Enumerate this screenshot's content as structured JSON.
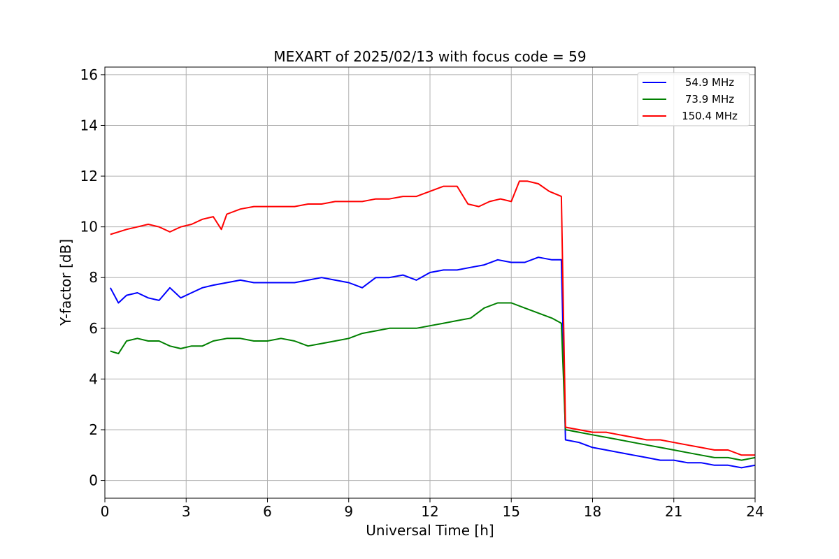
{
  "chart_data": {
    "type": "line",
    "title": "MEXART of 2025/02/13 with focus code = 59",
    "xlabel": "Universal Time [h]",
    "ylabel": "Y-factor [dB]",
    "xlim": [
      0,
      24
    ],
    "ylim": [
      -0.7,
      16.3
    ],
    "xticks": [
      0,
      3,
      6,
      9,
      12,
      15,
      18,
      21,
      24
    ],
    "yticks": [
      0,
      2,
      4,
      6,
      8,
      10,
      12,
      14,
      16
    ],
    "grid": true,
    "legend_position": "upper right",
    "series": [
      {
        "name": "54.9 MHz",
        "color": "#0000ff",
        "x": [
          0.2,
          0.5,
          0.8,
          1.2,
          1.6,
          2.0,
          2.4,
          2.8,
          3.2,
          3.6,
          4.0,
          4.5,
          5.0,
          5.5,
          6.0,
          6.5,
          7.0,
          7.5,
          8.0,
          8.5,
          9.0,
          9.5,
          10.0,
          10.5,
          11.0,
          11.5,
          12.0,
          12.5,
          13.0,
          13.5,
          14.0,
          14.5,
          15.0,
          15.5,
          16.0,
          16.5,
          16.85,
          17.0,
          17.5,
          18.0,
          18.5,
          19.0,
          19.5,
          20.0,
          20.5,
          21.0,
          21.5,
          22.0,
          22.5,
          23.0,
          23.5,
          24.0
        ],
        "y": [
          7.6,
          7.0,
          7.3,
          7.4,
          7.2,
          7.1,
          7.6,
          7.2,
          7.4,
          7.6,
          7.7,
          7.8,
          7.9,
          7.8,
          7.8,
          7.8,
          7.8,
          7.9,
          8.0,
          7.9,
          7.8,
          7.6,
          8.0,
          8.0,
          8.1,
          7.9,
          8.2,
          8.3,
          8.3,
          8.4,
          8.5,
          8.7,
          8.6,
          8.6,
          8.8,
          8.7,
          8.7,
          1.6,
          1.5,
          1.3,
          1.2,
          1.1,
          1.0,
          0.9,
          0.8,
          0.8,
          0.7,
          0.7,
          0.6,
          0.6,
          0.5,
          0.6
        ]
      },
      {
        "name": "73.9 MHz",
        "color": "#008000",
        "x": [
          0.2,
          0.5,
          0.8,
          1.2,
          1.6,
          2.0,
          2.4,
          2.8,
          3.2,
          3.6,
          4.0,
          4.5,
          5.0,
          5.5,
          6.0,
          6.5,
          7.0,
          7.5,
          8.0,
          8.5,
          9.0,
          9.5,
          10.0,
          10.5,
          11.0,
          11.5,
          12.0,
          12.5,
          13.0,
          13.5,
          14.0,
          14.5,
          15.0,
          15.5,
          16.0,
          16.5,
          16.85,
          17.0,
          17.5,
          18.0,
          18.5,
          19.0,
          19.5,
          20.0,
          20.5,
          21.0,
          21.5,
          22.0,
          22.5,
          23.0,
          23.5,
          24.0
        ],
        "y": [
          5.1,
          5.0,
          5.5,
          5.6,
          5.5,
          5.5,
          5.3,
          5.2,
          5.3,
          5.3,
          5.5,
          5.6,
          5.6,
          5.5,
          5.5,
          5.6,
          5.5,
          5.3,
          5.4,
          5.5,
          5.6,
          5.8,
          5.9,
          6.0,
          6.0,
          6.0,
          6.1,
          6.2,
          6.3,
          6.4,
          6.8,
          7.0,
          7.0,
          6.8,
          6.6,
          6.4,
          6.2,
          2.0,
          1.9,
          1.8,
          1.7,
          1.6,
          1.5,
          1.4,
          1.3,
          1.2,
          1.1,
          1.0,
          0.9,
          0.9,
          0.8,
          0.9
        ]
      },
      {
        "name": "150.4 MHz",
        "color": "#ff0000",
        "x": [
          0.2,
          0.5,
          0.8,
          1.2,
          1.6,
          2.0,
          2.4,
          2.8,
          3.2,
          3.6,
          4.0,
          4.3,
          4.5,
          5.0,
          5.5,
          6.0,
          6.5,
          7.0,
          7.5,
          8.0,
          8.5,
          9.0,
          9.5,
          10.0,
          10.5,
          11.0,
          11.5,
          12.0,
          12.5,
          13.0,
          13.4,
          13.8,
          14.2,
          14.6,
          15.0,
          15.3,
          15.6,
          16.0,
          16.4,
          16.85,
          17.0,
          17.5,
          18.0,
          18.5,
          19.0,
          19.5,
          20.0,
          20.5,
          21.0,
          21.5,
          22.0,
          22.5,
          23.0,
          23.5,
          24.0
        ],
        "y": [
          9.7,
          9.8,
          9.9,
          10.0,
          10.1,
          10.0,
          9.8,
          10.0,
          10.1,
          10.3,
          10.4,
          9.9,
          10.5,
          10.7,
          10.8,
          10.8,
          10.8,
          10.8,
          10.9,
          10.9,
          11.0,
          11.0,
          11.0,
          11.1,
          11.1,
          11.2,
          11.2,
          11.4,
          11.6,
          11.6,
          10.9,
          10.8,
          11.0,
          11.1,
          11.0,
          11.8,
          11.8,
          11.7,
          11.4,
          11.2,
          2.1,
          2.0,
          1.9,
          1.9,
          1.8,
          1.7,
          1.6,
          1.6,
          1.5,
          1.4,
          1.3,
          1.2,
          1.2,
          1.0,
          1.0
        ]
      }
    ]
  }
}
